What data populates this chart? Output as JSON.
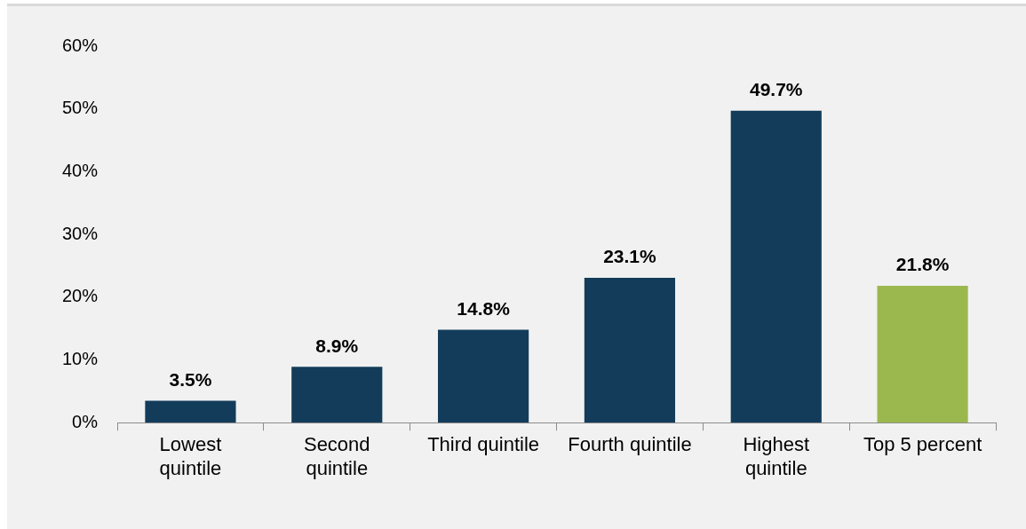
{
  "chart_data": {
    "type": "bar",
    "categories": [
      "Lowest quintile",
      "Second quintile",
      "Third quintile",
      "Fourth quintile",
      "Highest quintile",
      "Top 5 percent"
    ],
    "values": [
      3.5,
      8.9,
      14.8,
      23.1,
      49.7,
      21.8
    ],
    "colors": [
      "#133c5a",
      "#133c5a",
      "#133c5a",
      "#133c5a",
      "#133c5a",
      "#9bb84f"
    ],
    "value_labels": [
      "3.5%",
      "8.9%",
      "14.8%",
      "23.1%",
      "49.7%",
      "21.8%"
    ],
    "ylim": [
      0,
      60
    ],
    "yticks": [
      {
        "value": 0,
        "label": "0%"
      },
      {
        "value": 10,
        "label": "10%"
      },
      {
        "value": 20,
        "label": "20%"
      },
      {
        "value": 30,
        "label": "30%"
      },
      {
        "value": 40,
        "label": "40%"
      },
      {
        "value": 50,
        "label": "50%"
      },
      {
        "value": 60,
        "label": "60%"
      }
    ]
  }
}
